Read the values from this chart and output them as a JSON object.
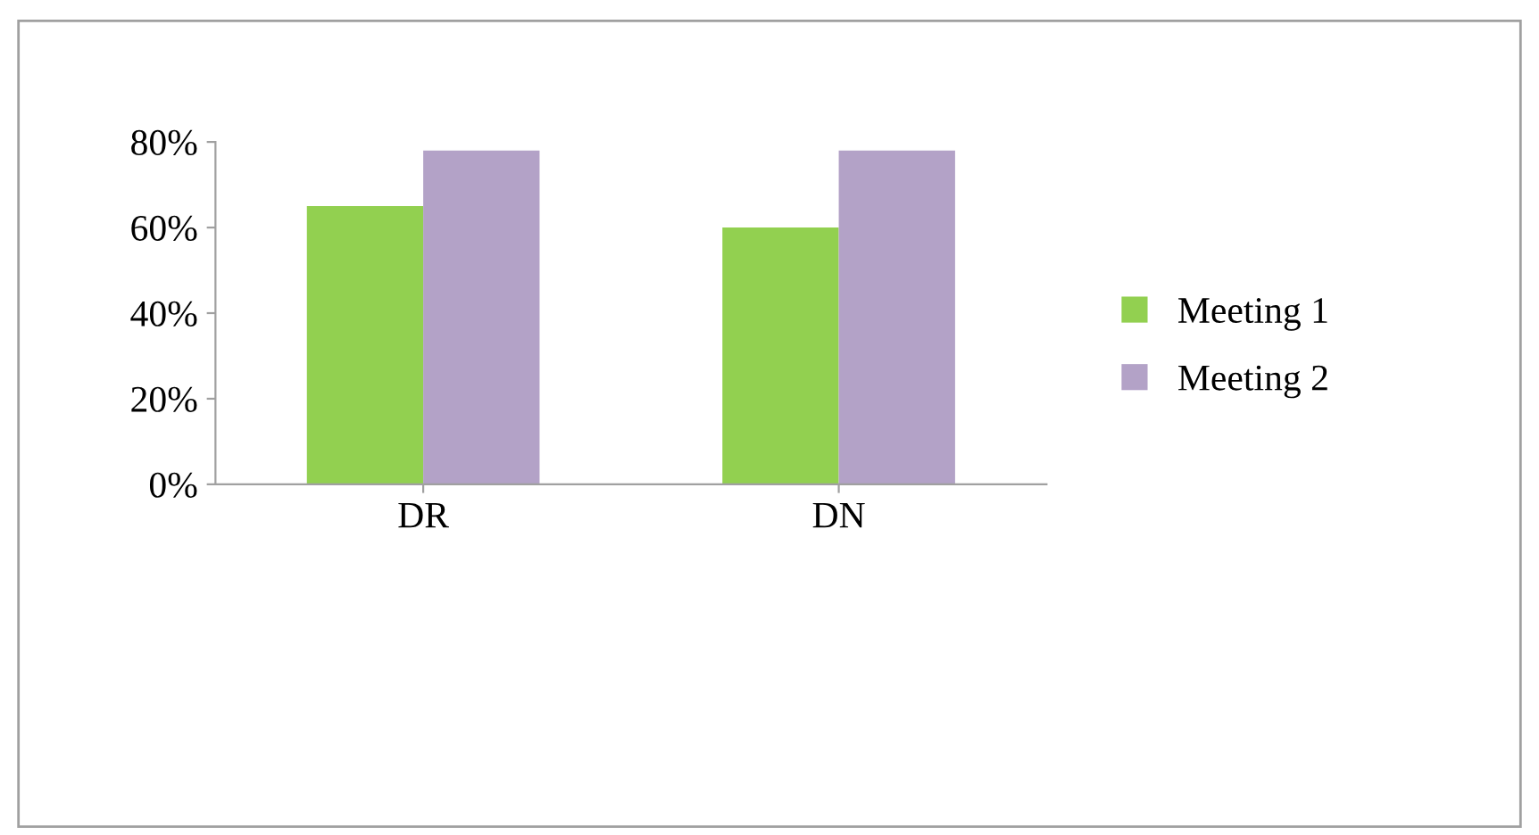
{
  "chart_data": {
    "type": "bar",
    "categories": [
      "DR",
      "DN"
    ],
    "series": [
      {
        "name": "Meeting 1",
        "color": "#92d050",
        "values": [
          65,
          60
        ]
      },
      {
        "name": "Meeting 2",
        "color": "#b3a2c7",
        "values": [
          78,
          78
        ]
      }
    ],
    "ylim": [
      0,
      80
    ],
    "yticks": [
      {
        "value": 0,
        "label": "0%"
      },
      {
        "value": 20,
        "label": "20%"
      },
      {
        "value": 40,
        "label": "40%"
      },
      {
        "value": 60,
        "label": "60%"
      },
      {
        "value": 80,
        "label": "80%"
      }
    ],
    "grid": false,
    "legend": "right"
  }
}
